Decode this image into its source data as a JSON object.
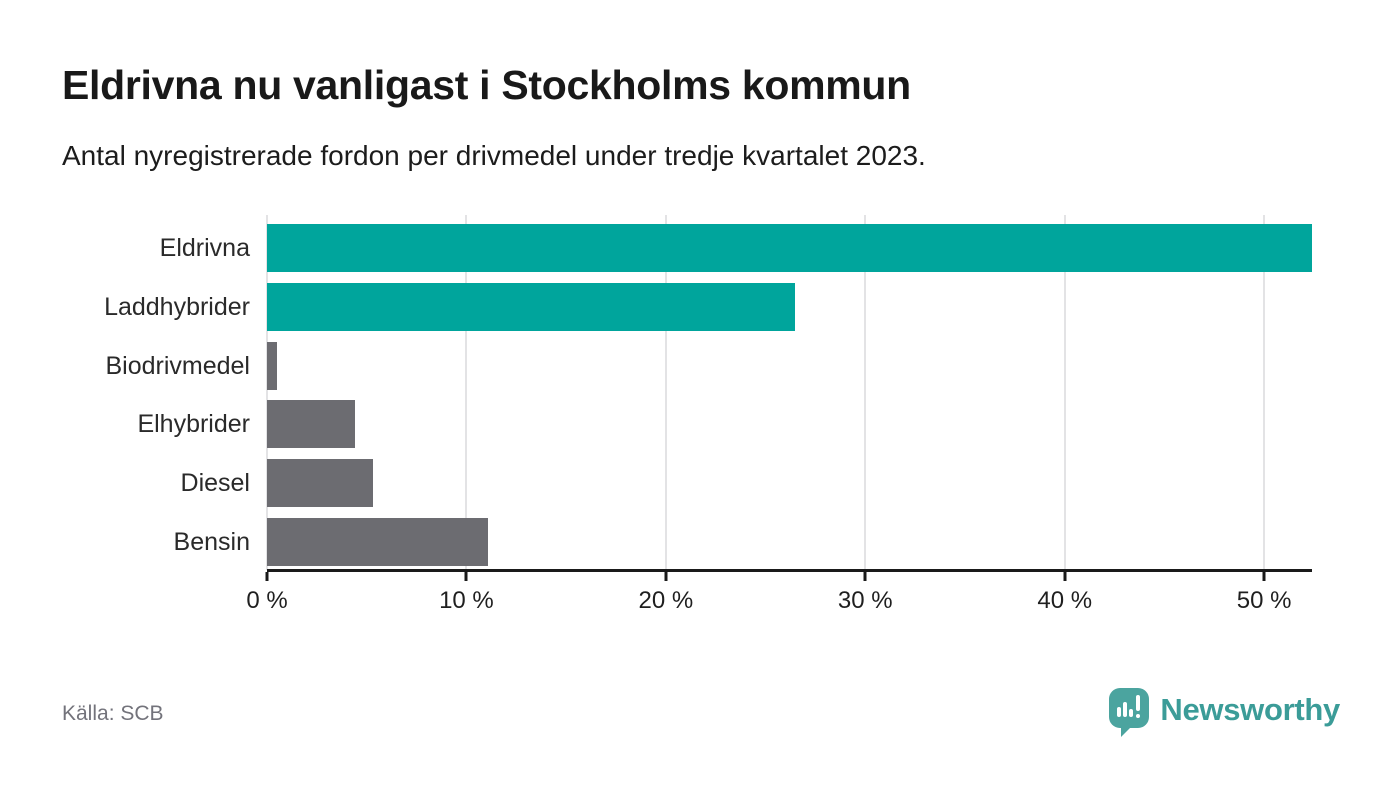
{
  "header": {
    "title": "Eldrivna nu vanligast i Stockholms kommun",
    "subtitle": "Antal nyregistrerade fordon per drivmedel under tredje kvartalet 2023."
  },
  "chart_data": {
    "type": "bar",
    "orientation": "horizontal",
    "title": "Eldrivna nu vanligast i Stockholms kommun",
    "xlabel": "",
    "ylabel": "",
    "unit": "%",
    "categories": [
      "Eldrivna",
      "Laddhybrider",
      "Biodrivmedel",
      "Elhybrider",
      "Diesel",
      "Bensin"
    ],
    "values": [
      52.4,
      26.5,
      0.5,
      4.4,
      5.3,
      11.1
    ],
    "bar_colors": [
      "#00a59c",
      "#00a59c",
      "#6c6c71",
      "#6c6c71",
      "#6c6c71",
      "#6c6c71"
    ],
    "highlight_color": "#00a59c",
    "default_bar_color": "#6c6c71",
    "xlim": [
      0,
      52.4
    ],
    "xticks": [
      0,
      10,
      20,
      30,
      40,
      50
    ],
    "xtick_labels": [
      "0 %",
      "10 %",
      "20 %",
      "30 %",
      "40 %",
      "50 %"
    ],
    "grid": "vertical",
    "gridline_color": "#e3e3e5",
    "axis_color": "#1a1a1a",
    "legend": "none"
  },
  "footer": {
    "source": "Källa: SCB",
    "brand": "Newsworthy",
    "brand_color": "#3b9c98",
    "logo_icon": "bar-chart-speech-bubble-icon"
  }
}
